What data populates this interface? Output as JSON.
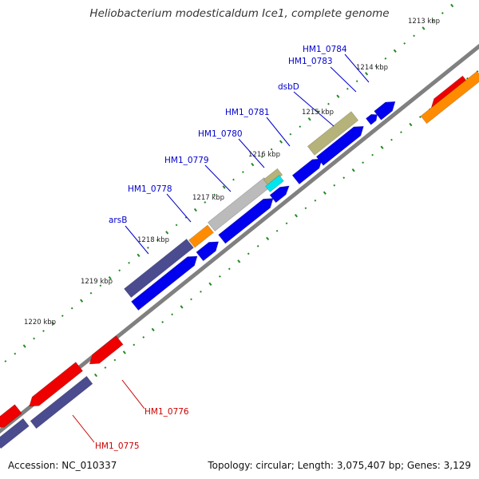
{
  "title": "Heliobacterium modesticaldum Ice1, complete genome",
  "footer": {
    "accession": "Accession: NC_010337",
    "summary": "Topology: circular; Length: 3,075,407 bp; Genes: 3,129"
  },
  "colors": {
    "backbone": "#7f7f7f",
    "forward_cds": "#0000ee",
    "reverse_cds": "#ee0000",
    "orange": "#ff8c00",
    "purple": "#4b4b8f",
    "khaki": "#b5b27a",
    "cyan": "#00e5ee",
    "grey": "#bbbbbb",
    "dots": "#228b22",
    "label_blue": "#0000cc",
    "label_red": "#cc0000"
  },
  "ticks": [
    {
      "label": "1213 kbp"
    },
    {
      "label": "1214 kbp"
    },
    {
      "label": "1215 kbp"
    },
    {
      "label": "1216 kbp"
    },
    {
      "label": "1217 kbp"
    },
    {
      "label": "1218 kbp"
    },
    {
      "label": "1219 kbp"
    },
    {
      "label": "1220 kbp"
    }
  ],
  "gene_labels": [
    {
      "name": "HM1_0784",
      "color": "label_blue"
    },
    {
      "name": "HM1_0783",
      "color": "label_blue"
    },
    {
      "name": "dsbD",
      "color": "label_blue"
    },
    {
      "name": "HM1_0781",
      "color": "label_blue"
    },
    {
      "name": "HM1_0780",
      "color": "label_blue"
    },
    {
      "name": "HM1_0779",
      "color": "label_blue"
    },
    {
      "name": "HM1_0778",
      "color": "label_blue"
    },
    {
      "name": "arsB",
      "color": "label_blue"
    },
    {
      "name": "HM1_0776",
      "color": "label_red"
    },
    {
      "name": "HM1_0775",
      "color": "label_red"
    }
  ]
}
